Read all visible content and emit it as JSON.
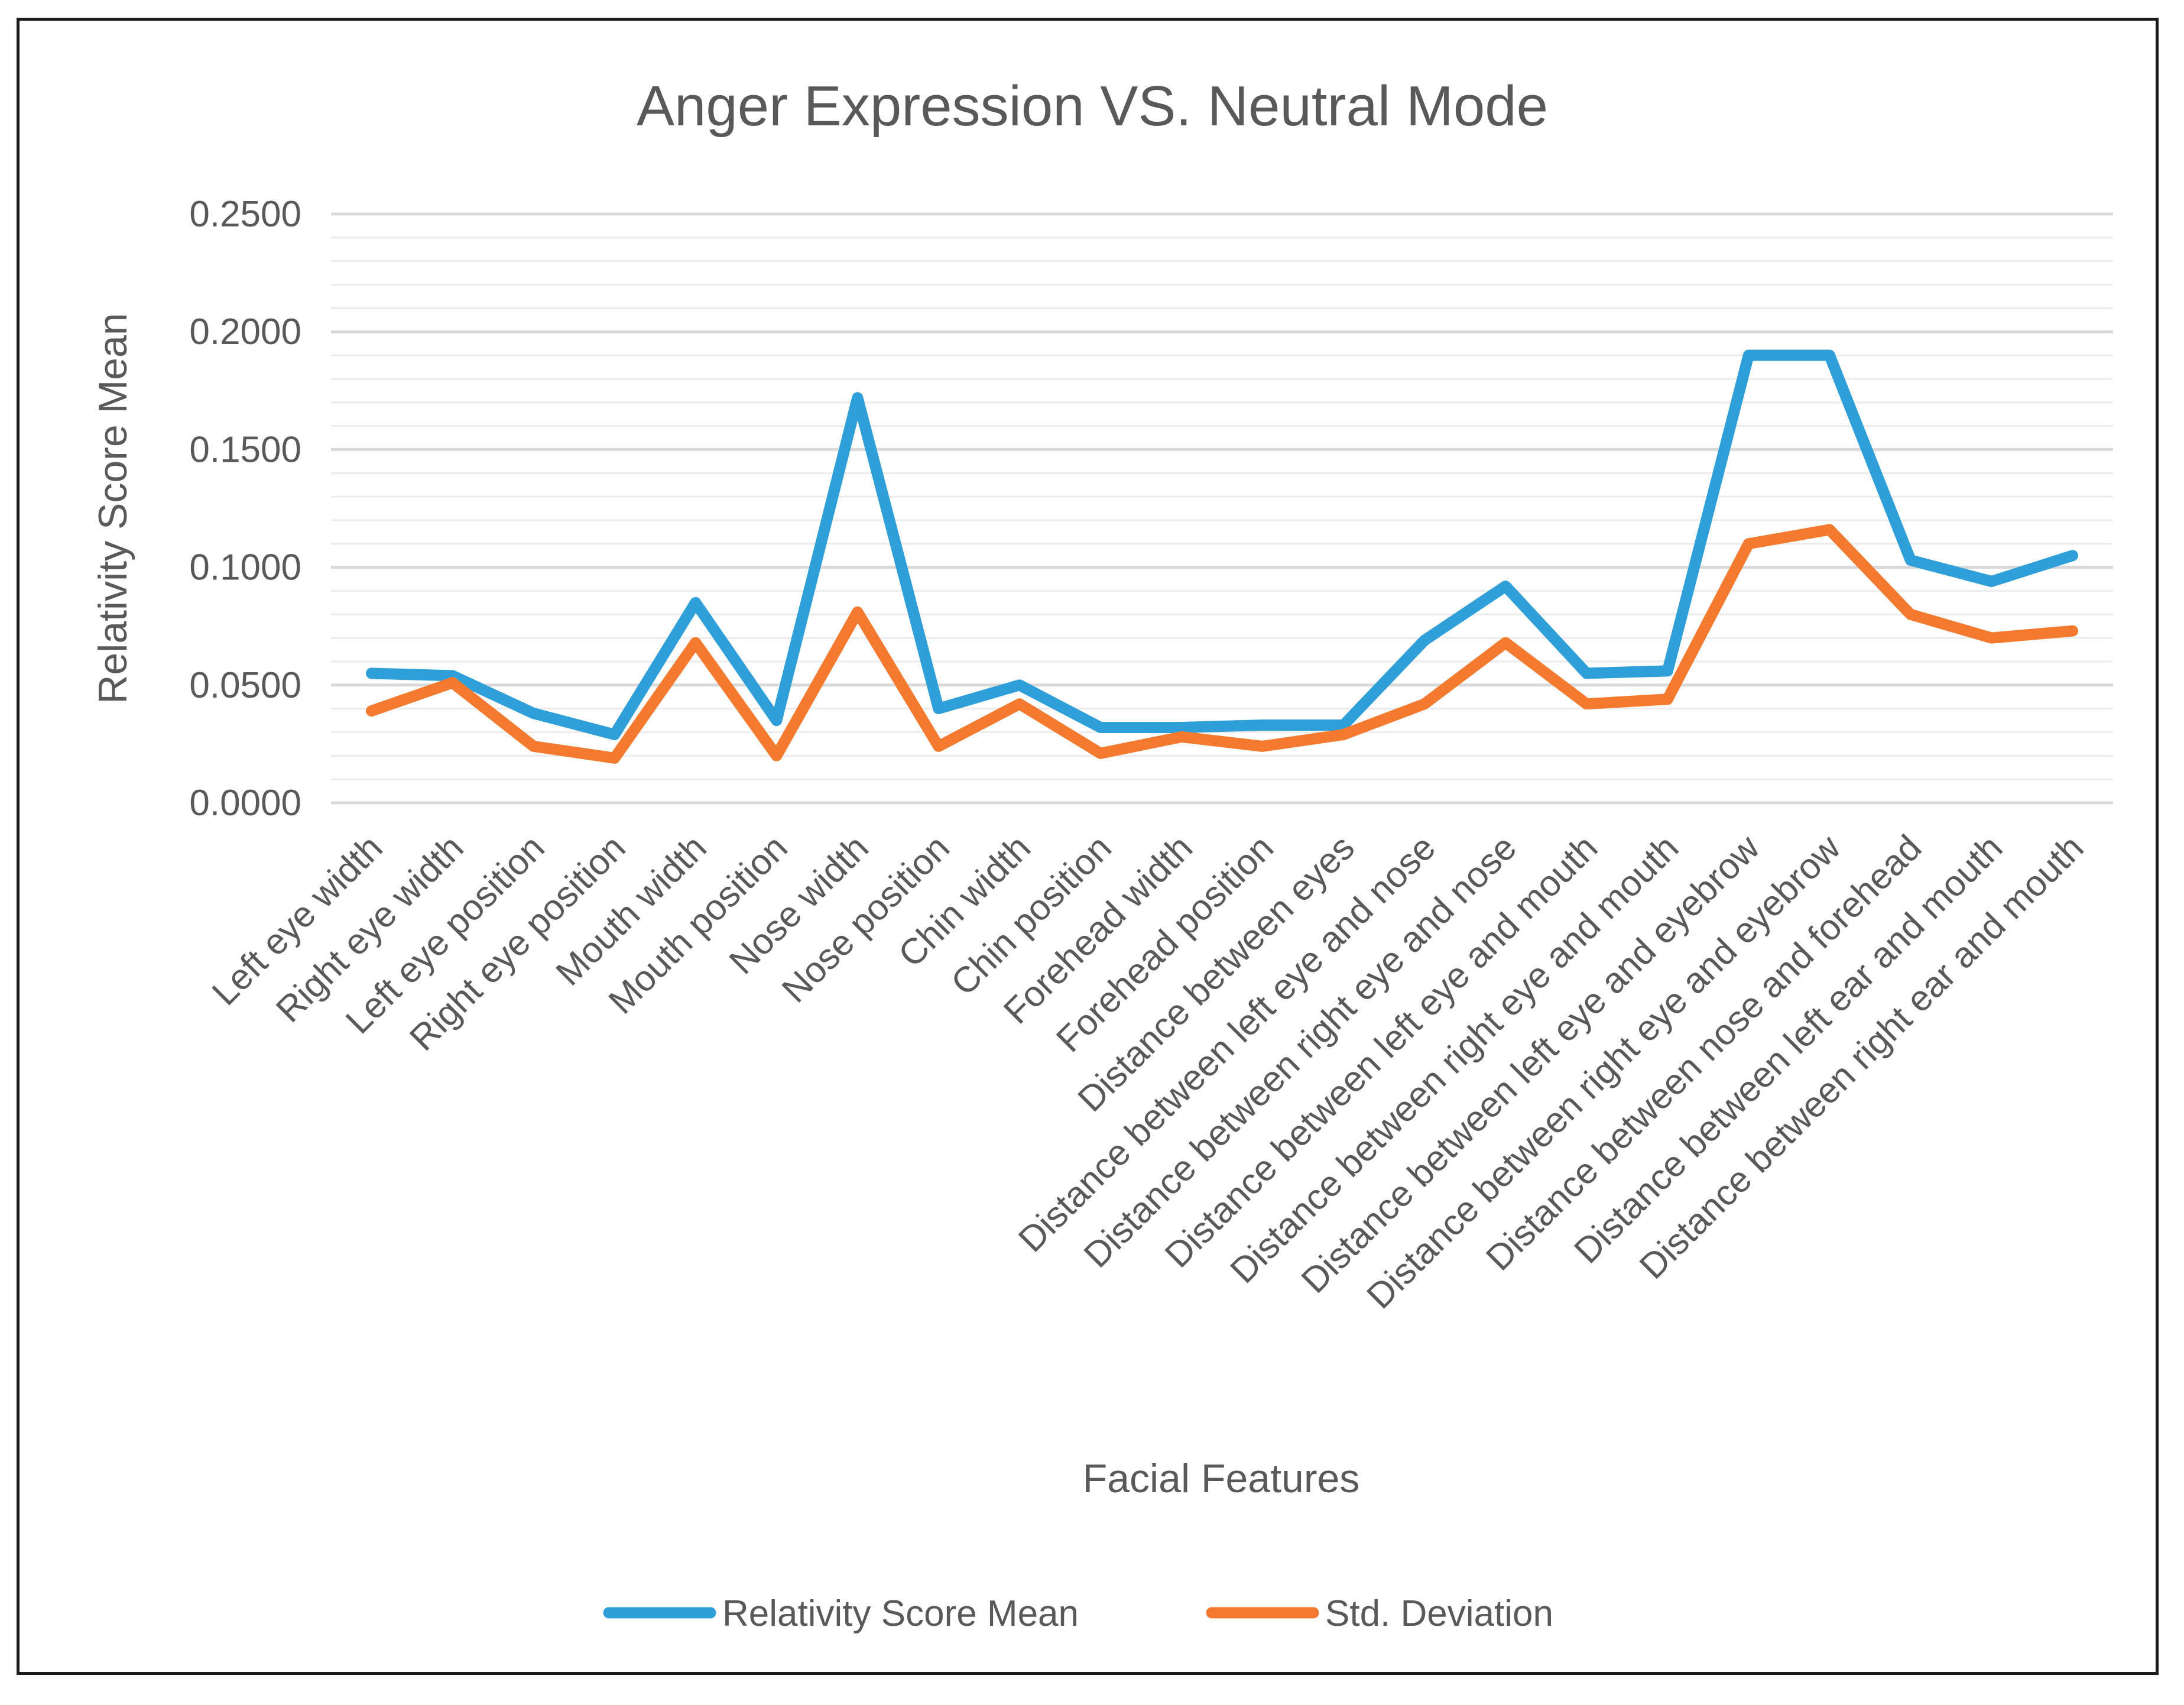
{
  "chart_data": {
    "type": "line",
    "title": "Anger Expression VS. Neutral Mode",
    "xlabel": "Facial Features",
    "ylabel": "Relativity Score Mean",
    "ylim": [
      0,
      0.25
    ],
    "y_ticks": [
      "0.0000",
      "0.0500",
      "0.1000",
      "0.1500",
      "0.2000",
      "0.2500"
    ],
    "y_tick_values": [
      0,
      0.05,
      0.1,
      0.15,
      0.2,
      0.25
    ],
    "grid": true,
    "legend_position": "bottom",
    "categories": [
      "Left eye width",
      "Right eye width",
      "Left eye position",
      "Right eye position",
      "Mouth width",
      "Mouth position",
      "Nose width",
      "Nose position",
      "Chin width",
      "Chin position",
      "Forehead width",
      "Forehead position",
      "Distance between eyes",
      "Distance between left eye and nose",
      "Distance between right eye and nose",
      "Distance between left eye and mouth",
      "Distance between right eye and mouth",
      "Distance between left eye and eyebrow",
      "Distance between right eye and eyebrow",
      "Distance between nose and forehead",
      "Distance between left ear and mouth",
      "Distance between right ear and mouth"
    ],
    "series": [
      {
        "name": "Relativity Score Mean",
        "color": "#2e9fd9",
        "values": [
          0.055,
          0.054,
          0.038,
          0.029,
          0.085,
          0.035,
          0.172,
          0.04,
          0.05,
          0.032,
          0.032,
          0.033,
          0.033,
          0.069,
          0.092,
          0.055,
          0.056,
          0.19,
          0.19,
          0.103,
          0.094,
          0.105
        ]
      },
      {
        "name": "Std. Deviation",
        "color": "#f47a30",
        "values": [
          0.039,
          0.051,
          0.024,
          0.019,
          0.068,
          0.02,
          0.081,
          0.024,
          0.042,
          0.021,
          0.028,
          0.024,
          0.029,
          0.042,
          0.068,
          0.042,
          0.044,
          0.11,
          0.116,
          0.08,
          0.07,
          0.073
        ]
      }
    ]
  }
}
